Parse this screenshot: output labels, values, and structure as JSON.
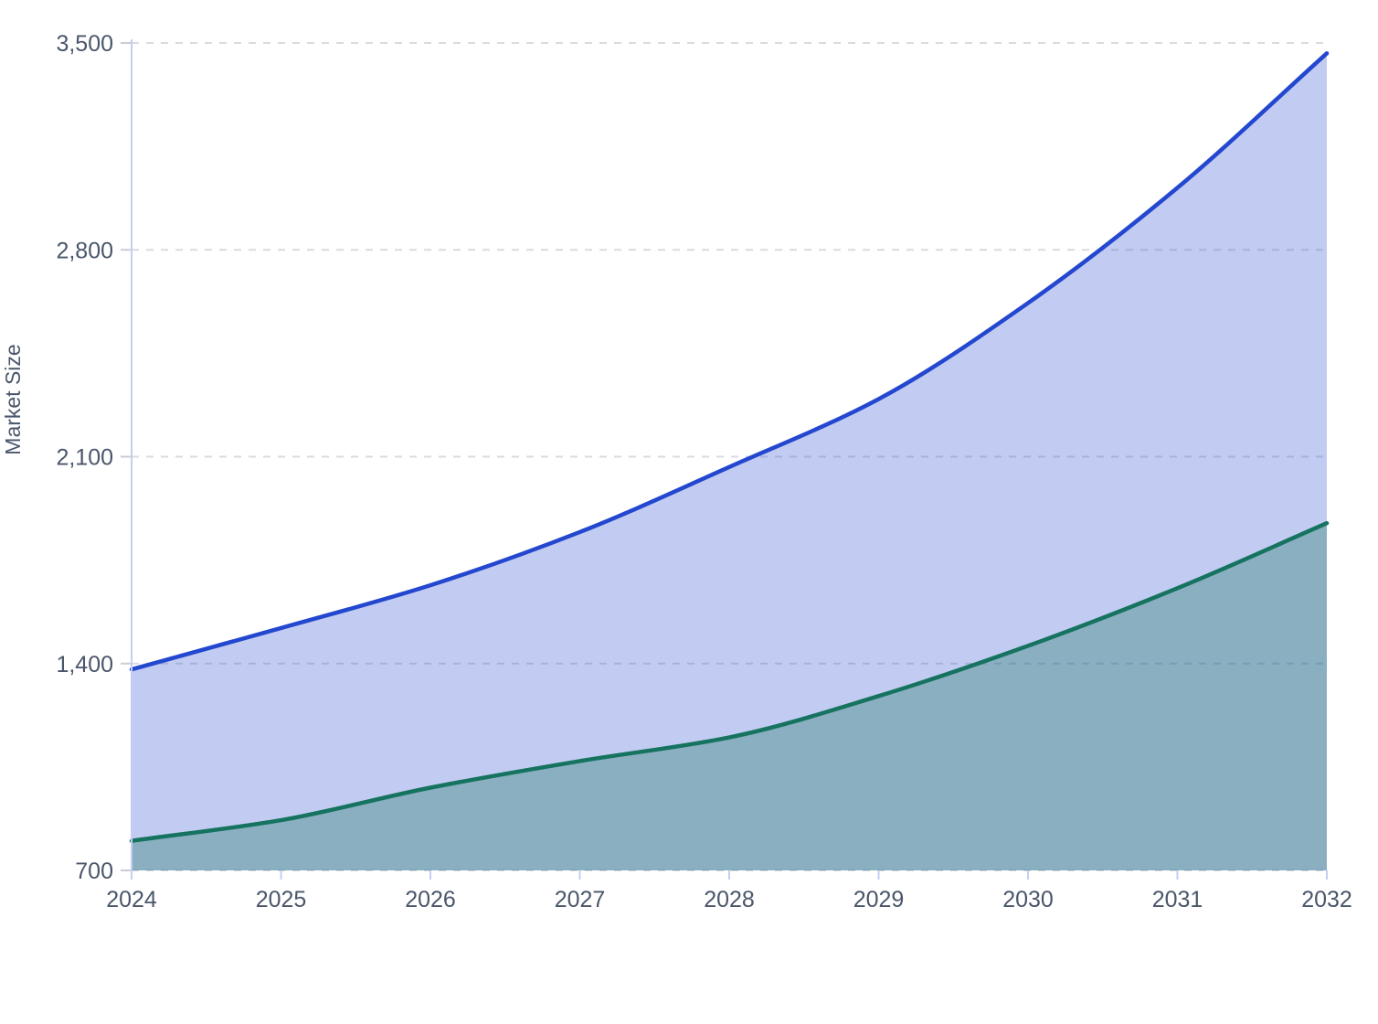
{
  "chart_data": {
    "type": "area",
    "title": "",
    "ylabel": "Market Size",
    "xlabel": "",
    "x": [
      2024,
      2025,
      2026,
      2027,
      2028,
      2029,
      2030,
      2031,
      2032
    ],
    "xtick_labels": [
      "2024",
      "2025",
      "2026",
      "2027",
      "2028",
      "2029",
      "2030",
      "2031",
      "2032"
    ],
    "yticks": [
      700,
      1400,
      2100,
      2800,
      3500
    ],
    "ytick_labels": [
      "700",
      "1,400",
      "2,100",
      "2,800",
      "3,500"
    ],
    "ylim": [
      700,
      3500
    ],
    "xlim": [
      2024,
      2032
    ],
    "grid": "horizontal-dashed",
    "legend_position": "none",
    "curve": "monotone",
    "series": [
      {
        "name": "series-1-blue",
        "color": "#2447d0",
        "fill_opacity": 0.28,
        "values": [
          1380,
          1520,
          1665,
          1845,
          2065,
          2295,
          2620,
          3010,
          3465
        ]
      },
      {
        "name": "series-2-teal",
        "color": "#15735f",
        "fill_opacity": 0.33,
        "values": [
          800,
          870,
          980,
          1070,
          1150,
          1290,
          1460,
          1655,
          1875
        ]
      }
    ],
    "style": {
      "background": "#ffffff",
      "gridline_color": "#d9dbe2",
      "axis_line_color": "#c6cdf4",
      "y_tick_color": "#c9ccd5",
      "x_tick_color": "#c6cdf4",
      "label_color": "#4a566a"
    }
  }
}
